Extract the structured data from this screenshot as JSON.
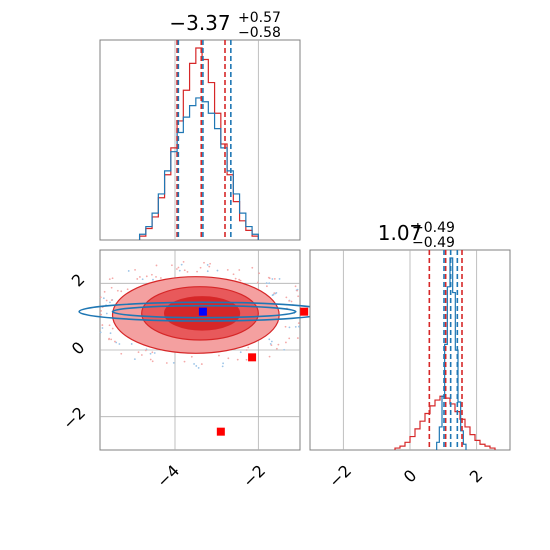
{
  "chart_data": [
    {
      "type": "histogram",
      "panel": "marginal-1",
      "title_main": "−3.37",
      "title_sup": "+0.57",
      "title_sub": "−0.58",
      "xlim": [
        -5.8,
        -1.0
      ],
      "grid": true,
      "series": [
        {
          "color": "#d62728",
          "bins": [
            -4.85,
            -4.7,
            -4.55,
            -4.4,
            -4.25,
            -4.1,
            -3.95,
            -3.8,
            -3.65,
            -3.5,
            -3.35,
            -3.2,
            -3.05,
            -2.9,
            -2.75,
            -2.6,
            -2.45,
            -2.3,
            -2.15
          ],
          "values": [
            0.02,
            0.06,
            0.12,
            0.22,
            0.34,
            0.48,
            0.62,
            0.78,
            0.92,
            1.0,
            0.94,
            0.82,
            0.66,
            0.5,
            0.34,
            0.2,
            0.1,
            0.05,
            0.02
          ],
          "quantiles": [
            -3.95,
            -3.37,
            -2.8
          ]
        },
        {
          "color": "#1f77b4",
          "bins": [
            -4.85,
            -4.7,
            -4.55,
            -4.4,
            -4.25,
            -4.1,
            -3.95,
            -3.8,
            -3.65,
            -3.5,
            -3.35,
            -3.2,
            -3.05,
            -2.9,
            -2.75,
            -2.6,
            -2.45,
            -2.3,
            -2.15
          ],
          "values": [
            0.03,
            0.07,
            0.14,
            0.24,
            0.36,
            0.46,
            0.56,
            0.64,
            0.7,
            0.74,
            0.72,
            0.66,
            0.58,
            0.48,
            0.36,
            0.24,
            0.14,
            0.07,
            0.03
          ],
          "quantiles": [
            -3.92,
            -3.33,
            -2.66
          ]
        }
      ]
    },
    {
      "type": "scatter",
      "panel": "joint",
      "xlim": [
        -5.8,
        -1.0
      ],
      "ylim": [
        -3.0,
        3.0
      ],
      "grid": true,
      "x_ticks": [
        "−4",
        "−2"
      ],
      "y_ticks": [
        "2",
        "0",
        "−2"
      ],
      "red_contours": [
        {
          "x": -3.5,
          "y": 1.05,
          "rx": 2.0,
          "ry": 1.15
        },
        {
          "x": -3.4,
          "y": 1.1,
          "rx": 1.4,
          "ry": 0.8
        },
        {
          "x": -3.35,
          "y": 1.1,
          "rx": 0.9,
          "ry": 0.5
        }
      ],
      "blue_contours": [
        {
          "x": -3.3,
          "y": 1.15,
          "rx": 3.0,
          "ry": 0.28
        },
        {
          "x": -3.3,
          "y": 1.15,
          "rx": 2.2,
          "ry": 0.18
        }
      ],
      "markers": [
        {
          "color": "#0000ff",
          "x": -3.33,
          "y": 1.15
        },
        {
          "color": "#ff0000",
          "x": -2.15,
          "y": -0.22
        },
        {
          "color": "#ff0000",
          "x": -2.9,
          "y": -2.45
        },
        {
          "color": "#ff0000",
          "x": -0.9,
          "y": 1.15
        }
      ]
    },
    {
      "type": "histogram",
      "panel": "marginal-2",
      "title_main": "1.07",
      "title_sup": "+0.49",
      "title_sub": "−0.49",
      "xlim": [
        -3.0,
        3.0
      ],
      "grid": true,
      "x_ticks": [
        "−2",
        "0",
        "2"
      ],
      "series": [
        {
          "color": "#d62728",
          "bins": [
            -0.45,
            -0.3,
            -0.15,
            0.0,
            0.15,
            0.3,
            0.45,
            0.6,
            0.75,
            0.9,
            1.05,
            1.2,
            1.35,
            1.5,
            1.65,
            1.8,
            1.95,
            2.1,
            2.25,
            2.4
          ],
          "values": [
            0.01,
            0.02,
            0.04,
            0.07,
            0.11,
            0.15,
            0.19,
            0.23,
            0.26,
            0.28,
            0.27,
            0.24,
            0.2,
            0.16,
            0.12,
            0.08,
            0.05,
            0.03,
            0.02,
            0.01
          ],
          "quantiles": [
            0.58,
            1.07,
            1.56
          ]
        },
        {
          "color": "#1f77b4",
          "bins": [
            0.8,
            0.88,
            0.96,
            1.04,
            1.12,
            1.2,
            1.28,
            1.36,
            1.44,
            1.52,
            1.6
          ],
          "values": [
            0.04,
            0.12,
            0.28,
            0.55,
            0.85,
            1.0,
            0.82,
            0.52,
            0.25,
            0.1,
            0.03
          ],
          "quantiles": [
            1.02,
            1.22,
            1.42
          ]
        }
      ]
    }
  ]
}
